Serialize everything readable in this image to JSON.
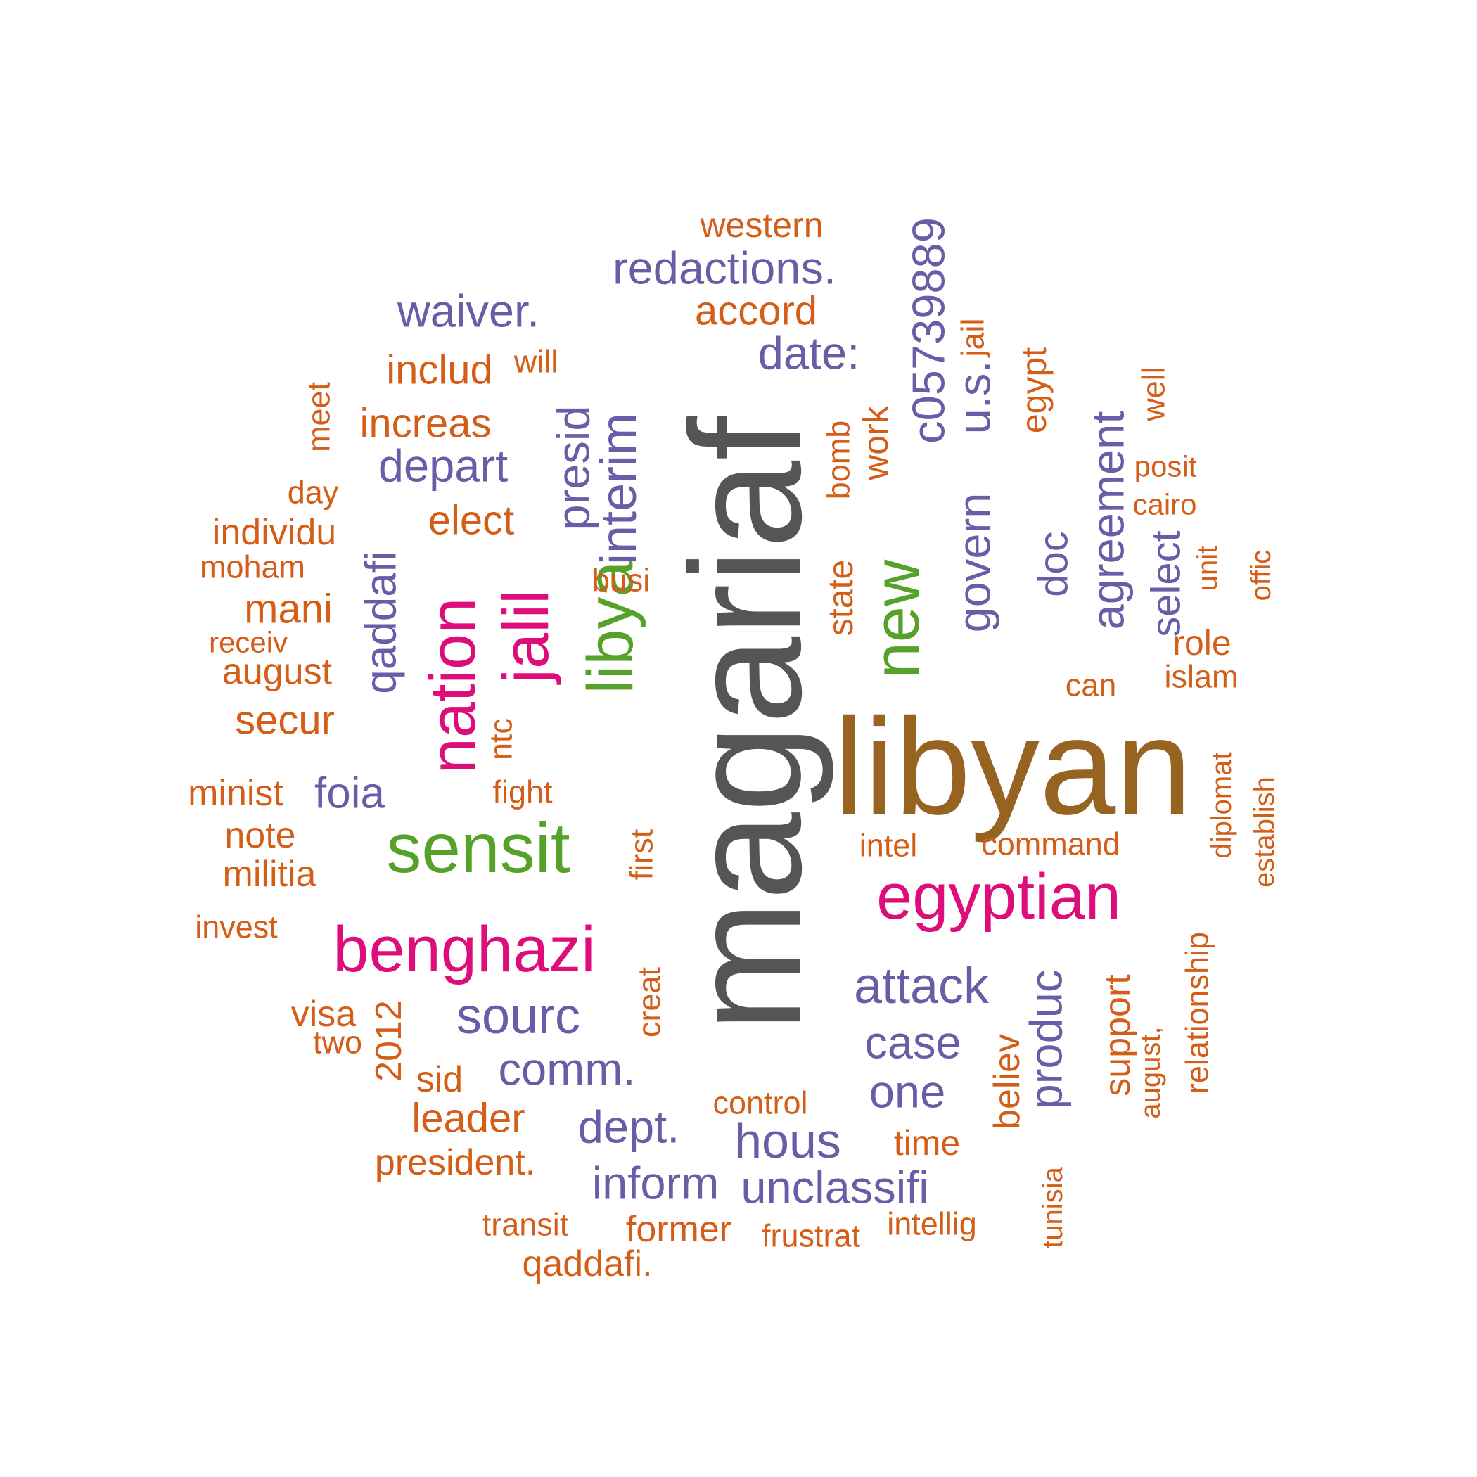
{
  "palette": {
    "gray": "#555555",
    "brown": "#966321",
    "green": "#55A12A",
    "magenta": "#DD0D7A",
    "purple": "#6A5CA6",
    "orange": "#D45E17"
  },
  "words": [
    {
      "text": "magariaf",
      "color": "gray",
      "size": 4
    },
    {
      "text": "libyan",
      "color": "brown",
      "size": 3
    },
    {
      "text": "libya",
      "color": "green",
      "size": 2
    },
    {
      "text": "sensit",
      "color": "green",
      "size": 2
    },
    {
      "text": "new",
      "color": "green",
      "size": 2
    },
    {
      "text": "egyptian",
      "color": "magenta",
      "size": 2
    },
    {
      "text": "benghazi",
      "color": "magenta",
      "size": 2
    },
    {
      "text": "nation",
      "color": "magenta",
      "size": 2
    },
    {
      "text": "jalil",
      "color": "magenta",
      "size": 2
    },
    {
      "text": "interim",
      "color": "purple",
      "size": 1
    },
    {
      "text": "presid",
      "color": "purple",
      "size": 1
    },
    {
      "text": "redactions.",
      "color": "purple",
      "size": 1
    },
    {
      "text": "waiver.",
      "color": "purple",
      "size": 1
    },
    {
      "text": "date:",
      "color": "purple",
      "size": 1
    },
    {
      "text": "c05739889",
      "color": "purple",
      "size": 1
    },
    {
      "text": "u.s.",
      "color": "purple",
      "size": 1
    },
    {
      "text": "govern",
      "color": "purple",
      "size": 1
    },
    {
      "text": "agreement",
      "color": "purple",
      "size": 1
    },
    {
      "text": "doc",
      "color": "purple",
      "size": 1
    },
    {
      "text": "select",
      "color": "purple",
      "size": 1
    },
    {
      "text": "depart",
      "color": "purple",
      "size": 1
    },
    {
      "text": "qaddafi",
      "color": "purple",
      "size": 1
    },
    {
      "text": "foia",
      "color": "purple",
      "size": 1
    },
    {
      "text": "sourc",
      "color": "purple",
      "size": 1
    },
    {
      "text": "comm.",
      "color": "purple",
      "size": 1
    },
    {
      "text": "attack",
      "color": "purple",
      "size": 1
    },
    {
      "text": "case",
      "color": "purple",
      "size": 1
    },
    {
      "text": "one",
      "color": "purple",
      "size": 1
    },
    {
      "text": "produc",
      "color": "purple",
      "size": 1
    },
    {
      "text": "dept.",
      "color": "purple",
      "size": 1
    },
    {
      "text": "hous",
      "color": "purple",
      "size": 1
    },
    {
      "text": "inform",
      "color": "purple",
      "size": 1
    },
    {
      "text": "unclassifi",
      "color": "purple",
      "size": 1
    },
    {
      "text": "western",
      "color": "orange",
      "size": 0
    },
    {
      "text": "accord",
      "color": "orange",
      "size": 0
    },
    {
      "text": "includ",
      "color": "orange",
      "size": 0
    },
    {
      "text": "will",
      "color": "orange",
      "size": 0
    },
    {
      "text": "increas",
      "color": "orange",
      "size": 0
    },
    {
      "text": "elect",
      "color": "orange",
      "size": 0
    },
    {
      "text": "meet",
      "color": "orange",
      "size": 0
    },
    {
      "text": "day",
      "color": "orange",
      "size": 0
    },
    {
      "text": "individu",
      "color": "orange",
      "size": 0
    },
    {
      "text": "moham",
      "color": "orange",
      "size": 0
    },
    {
      "text": "mani",
      "color": "orange",
      "size": 0
    },
    {
      "text": "receiv",
      "color": "orange",
      "size": 0
    },
    {
      "text": "august",
      "color": "orange",
      "size": 0
    },
    {
      "text": "secur",
      "color": "orange",
      "size": 0
    },
    {
      "text": "minist",
      "color": "orange",
      "size": 0
    },
    {
      "text": "note",
      "color": "orange",
      "size": 0
    },
    {
      "text": "militia",
      "color": "orange",
      "size": 0
    },
    {
      "text": "invest",
      "color": "orange",
      "size": 0
    },
    {
      "text": "visa",
      "color": "orange",
      "size": 0
    },
    {
      "text": "two",
      "color": "orange",
      "size": 0
    },
    {
      "text": "2012",
      "color": "orange",
      "size": 0
    },
    {
      "text": "sid",
      "color": "orange",
      "size": 0
    },
    {
      "text": "leader",
      "color": "orange",
      "size": 0
    },
    {
      "text": "president.",
      "color": "orange",
      "size": 0
    },
    {
      "text": "transit",
      "color": "orange",
      "size": 0
    },
    {
      "text": "qaddafi.",
      "color": "orange",
      "size": 0
    },
    {
      "text": "former",
      "color": "orange",
      "size": 0
    },
    {
      "text": "frustrat",
      "color": "orange",
      "size": 0
    },
    {
      "text": "intellig",
      "color": "orange",
      "size": 0
    },
    {
      "text": "control",
      "color": "orange",
      "size": 0
    },
    {
      "text": "time",
      "color": "orange",
      "size": 0
    },
    {
      "text": "ntc",
      "color": "orange",
      "size": 0
    },
    {
      "text": "fight",
      "color": "orange",
      "size": 0
    },
    {
      "text": "busi",
      "color": "orange",
      "size": 0
    },
    {
      "text": "first",
      "color": "orange",
      "size": 0
    },
    {
      "text": "creat",
      "color": "orange",
      "size": 0
    },
    {
      "text": "work",
      "color": "orange",
      "size": 0
    },
    {
      "text": "bomb",
      "color": "orange",
      "size": 0
    },
    {
      "text": "state",
      "color": "orange",
      "size": 0
    },
    {
      "text": "jail",
      "color": "orange",
      "size": 0
    },
    {
      "text": "egypt",
      "color": "orange",
      "size": 0
    },
    {
      "text": "well",
      "color": "orange",
      "size": 0
    },
    {
      "text": "posit",
      "color": "orange",
      "size": 0
    },
    {
      "text": "cairo",
      "color": "orange",
      "size": 0
    },
    {
      "text": "unit",
      "color": "orange",
      "size": 0
    },
    {
      "text": "offic",
      "color": "orange",
      "size": 0
    },
    {
      "text": "role",
      "color": "orange",
      "size": 0
    },
    {
      "text": "islam",
      "color": "orange",
      "size": 0
    },
    {
      "text": "can",
      "color": "orange",
      "size": 0
    },
    {
      "text": "intel",
      "color": "orange",
      "size": 0
    },
    {
      "text": "command",
      "color": "orange",
      "size": 0
    },
    {
      "text": "diplomat",
      "color": "orange",
      "size": 0
    },
    {
      "text": "establish",
      "color": "orange",
      "size": 0
    },
    {
      "text": "relationship",
      "color": "orange",
      "size": 0
    },
    {
      "text": "august,",
      "color": "orange",
      "size": 0
    },
    {
      "text": "support",
      "color": "orange",
      "size": 0
    },
    {
      "text": "believ",
      "color": "orange",
      "size": 0
    },
    {
      "text": "tunisia",
      "color": "orange",
      "size": 0
    }
  ]
}
